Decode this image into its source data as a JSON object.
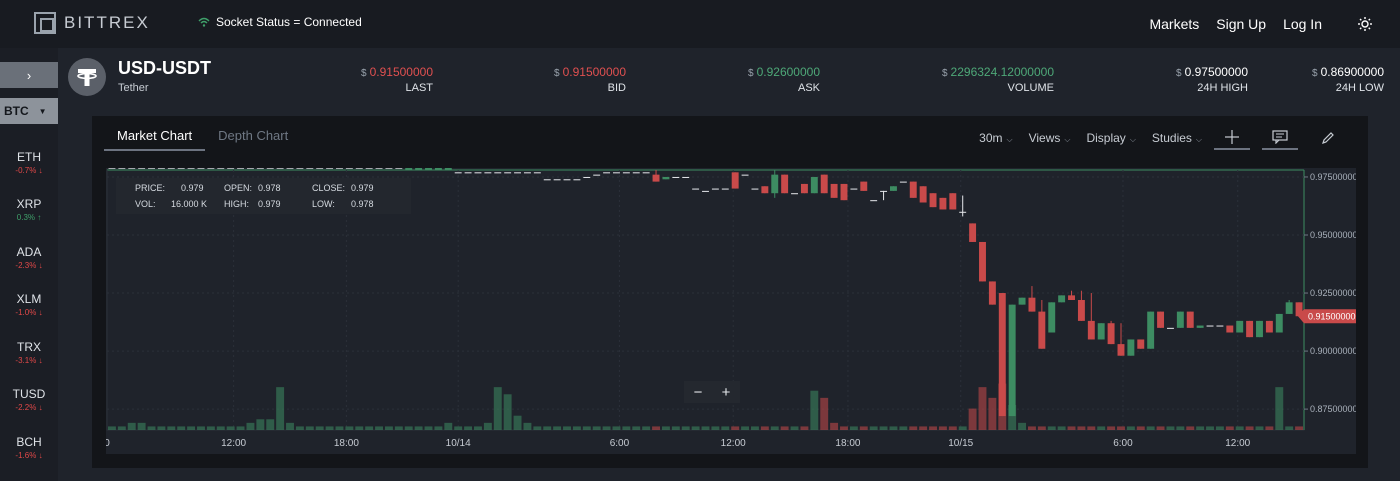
{
  "brand": {
    "name": "BITTREX"
  },
  "socket_status": "Socket Status = Connected",
  "nav": {
    "markets": "Markets",
    "signup": "Sign Up",
    "login": "Log In"
  },
  "sidebar": {
    "collapse": "›",
    "market": "BTC",
    "coins": [
      {
        "symbol": "ETH",
        "change": "-0.7%",
        "dir": "down"
      },
      {
        "symbol": "XRP",
        "change": "0.3%",
        "dir": "up"
      },
      {
        "symbol": "ADA",
        "change": "-2.3%",
        "dir": "down"
      },
      {
        "symbol": "XLM",
        "change": "-1.0%",
        "dir": "down"
      },
      {
        "symbol": "TRX",
        "change": "-3.1%",
        "dir": "down"
      },
      {
        "symbol": "TUSD",
        "change": "-2.2%",
        "dir": "down"
      },
      {
        "symbol": "BCH",
        "change": "-1.6%",
        "dir": "down"
      }
    ]
  },
  "ticker": {
    "pair": "USD-USDT",
    "name": "Tether",
    "stats": [
      {
        "label": "LAST",
        "value": "0.91500000",
        "color": "red"
      },
      {
        "label": "BID",
        "value": "0.91500000",
        "color": "red"
      },
      {
        "label": "ASK",
        "value": "0.92600000",
        "color": "green"
      },
      {
        "label": "VOLUME",
        "value": "2296324.12000000",
        "color": "green"
      },
      {
        "label": "24H HIGH",
        "value": "0.97500000",
        "color": "white"
      },
      {
        "label": "24H LOW",
        "value": "0.86900000",
        "color": "white"
      }
    ]
  },
  "chart_tabs": {
    "market": "Market Chart",
    "depth": "Depth Chart"
  },
  "toolbar": {
    "interval": "30m",
    "views": "Views",
    "display": "Display",
    "studies": "Studies"
  },
  "ohlc": {
    "price_label": "PRICE:",
    "price": "0.979",
    "open_label": "OPEN:",
    "open": "0.978",
    "close_label": "CLOSE:",
    "close": "0.979",
    "vol_label": "VOL:",
    "vol": "16.000 K",
    "high_label": "HIGH:",
    "high": "0.979",
    "low_label": "LOW:",
    "low": "0.978"
  },
  "zoom": {
    "minus": "−",
    "plus": "+"
  },
  "colors": {
    "up": "#3d8c62",
    "down": "#c94a4a",
    "background": "#1f232b",
    "panel": "#131519"
  },
  "chart_data": {
    "type": "candlestick",
    "interval": "30m",
    "current_price": "0.91500000",
    "y_ticks": [
      "0.97500000",
      "0.95000000",
      "0.92500000",
      "0.90000000",
      "0.87500000"
    ],
    "ylim": [
      0.866,
      0.978
    ],
    "x_ticks": [
      "0",
      "12:00",
      "18:00",
      "10/14",
      "6:00",
      "12:00",
      "18:00",
      "10/15",
      "6:00",
      "12:00"
    ],
    "x_tick_index": [
      0,
      12.8,
      24.2,
      35.5,
      51.8,
      63.3,
      74.9,
      86.3,
      102.7,
      114.3
    ],
    "candles": [
      [
        0.979,
        0.979,
        0.979,
        0.979
      ],
      [
        0.979,
        0.979,
        0.979,
        0.979
      ],
      [
        0.979,
        0.979,
        0.979,
        0.979
      ],
      [
        0.979,
        0.979,
        0.979,
        0.979
      ],
      [
        0.979,
        0.979,
        0.979,
        0.979
      ],
      [
        0.979,
        0.979,
        0.979,
        0.979
      ],
      [
        0.979,
        0.979,
        0.979,
        0.979
      ],
      [
        0.979,
        0.979,
        0.979,
        0.979
      ],
      [
        0.979,
        0.979,
        0.979,
        0.979
      ],
      [
        0.979,
        0.979,
        0.979,
        0.979
      ],
      [
        0.979,
        0.979,
        0.979,
        0.979
      ],
      [
        0.979,
        0.979,
        0.979,
        0.979
      ],
      [
        0.979,
        0.979,
        0.979,
        0.979
      ],
      [
        0.979,
        0.979,
        0.979,
        0.979
      ],
      [
        0.979,
        0.979,
        0.979,
        0.979
      ],
      [
        0.979,
        0.979,
        0.979,
        0.979
      ],
      [
        0.979,
        0.979,
        0.979,
        0.979
      ],
      [
        0.979,
        0.979,
        0.979,
        0.979
      ],
      [
        0.979,
        0.979,
        0.979,
        0.979
      ],
      [
        0.979,
        0.979,
        0.979,
        0.979
      ],
      [
        0.979,
        0.979,
        0.979,
        0.979
      ],
      [
        0.979,
        0.979,
        0.979,
        0.979
      ],
      [
        0.979,
        0.979,
        0.979,
        0.979
      ],
      [
        0.979,
        0.979,
        0.979,
        0.979
      ],
      [
        0.979,
        0.979,
        0.979,
        0.979
      ],
      [
        0.979,
        0.979,
        0.979,
        0.979
      ],
      [
        0.979,
        0.979,
        0.979,
        0.979
      ],
      [
        0.979,
        0.979,
        0.979,
        0.979
      ],
      [
        0.979,
        0.979,
        0.979,
        0.979
      ],
      [
        0.979,
        0.979,
        0.979,
        0.979
      ],
      [
        0.978,
        0.979,
        0.978,
        0.979
      ],
      [
        0.978,
        0.979,
        0.978,
        0.979
      ],
      [
        0.978,
        0.979,
        0.978,
        0.979
      ],
      [
        0.978,
        0.979,
        0.978,
        0.979
      ],
      [
        0.978,
        0.979,
        0.978,
        0.979
      ],
      [
        0.977,
        0.977,
        0.977,
        0.977
      ],
      [
        0.977,
        0.977,
        0.977,
        0.977
      ],
      [
        0.977,
        0.977,
        0.977,
        0.977
      ],
      [
        0.977,
        0.977,
        0.977,
        0.977
      ],
      [
        0.977,
        0.977,
        0.977,
        0.977
      ],
      [
        0.977,
        0.977,
        0.977,
        0.977
      ],
      [
        0.977,
        0.977,
        0.977,
        0.977
      ],
      [
        0.977,
        0.977,
        0.977,
        0.977
      ],
      [
        0.977,
        0.977,
        0.977,
        0.977
      ],
      [
        0.974,
        0.974,
        0.974,
        0.974
      ],
      [
        0.974,
        0.974,
        0.974,
        0.974
      ],
      [
        0.974,
        0.974,
        0.974,
        0.974
      ],
      [
        0.974,
        0.974,
        0.974,
        0.974
      ],
      [
        0.975,
        0.975,
        0.975,
        0.975
      ],
      [
        0.976,
        0.976,
        0.976,
        0.976
      ],
      [
        0.977,
        0.977,
        0.977,
        0.977
      ],
      [
        0.977,
        0.977,
        0.977,
        0.977
      ],
      [
        0.977,
        0.977,
        0.977,
        0.977
      ],
      [
        0.977,
        0.977,
        0.977,
        0.977
      ],
      [
        0.977,
        0.977,
        0.977,
        0.977
      ],
      [
        0.976,
        0.978,
        0.973,
        0.973
      ],
      [
        0.974,
        0.975,
        0.974,
        0.975
      ],
      [
        0.975,
        0.975,
        0.975,
        0.975
      ],
      [
        0.975,
        0.975,
        0.975,
        0.975
      ],
      [
        0.97,
        0.97,
        0.97,
        0.97
      ],
      [
        0.969,
        0.969,
        0.969,
        0.969
      ],
      [
        0.97,
        0.97,
        0.97,
        0.97
      ],
      [
        0.97,
        0.97,
        0.97,
        0.97
      ],
      [
        0.977,
        0.977,
        0.97,
        0.97
      ],
      [
        0.976,
        0.976,
        0.976,
        0.976
      ],
      [
        0.97,
        0.97,
        0.97,
        0.97
      ],
      [
        0.971,
        0.971,
        0.968,
        0.968
      ],
      [
        0.968,
        0.978,
        0.966,
        0.976
      ],
      [
        0.976,
        0.976,
        0.968,
        0.968
      ],
      [
        0.968,
        0.968,
        0.968,
        0.968
      ],
      [
        0.972,
        0.972,
        0.968,
        0.968
      ],
      [
        0.968,
        0.975,
        0.968,
        0.975
      ],
      [
        0.976,
        0.976,
        0.968,
        0.968
      ],
      [
        0.972,
        0.972,
        0.966,
        0.966
      ],
      [
        0.972,
        0.972,
        0.965,
        0.965
      ],
      [
        0.97,
        0.97,
        0.97,
        0.97
      ],
      [
        0.973,
        0.973,
        0.969,
        0.969
      ],
      [
        0.965,
        0.965,
        0.965,
        0.965
      ],
      [
        0.969,
        0.969,
        0.965,
        0.969
      ],
      [
        0.969,
        0.971,
        0.969,
        0.971
      ],
      [
        0.973,
        0.973,
        0.973,
        0.973
      ],
      [
        0.973,
        0.973,
        0.966,
        0.966
      ],
      [
        0.971,
        0.971,
        0.964,
        0.964
      ],
      [
        0.968,
        0.968,
        0.962,
        0.962
      ],
      [
        0.966,
        0.966,
        0.961,
        0.961
      ],
      [
        0.968,
        0.968,
        0.961,
        0.961
      ],
      [
        0.96,
        0.967,
        0.958,
        0.96
      ],
      [
        0.955,
        0.955,
        0.947,
        0.947
      ],
      [
        0.947,
        0.947,
        0.93,
        0.93
      ],
      [
        0.93,
        0.93,
        0.92,
        0.92
      ],
      [
        0.925,
        0.925,
        0.872,
        0.872
      ],
      [
        0.872,
        0.92,
        0.872,
        0.92
      ],
      [
        0.92,
        0.923,
        0.92,
        0.923
      ],
      [
        0.923,
        0.928,
        0.917,
        0.917
      ],
      [
        0.917,
        0.922,
        0.901,
        0.901
      ],
      [
        0.908,
        0.921,
        0.908,
        0.921
      ],
      [
        0.921,
        0.924,
        0.921,
        0.924
      ],
      [
        0.924,
        0.926,
        0.922,
        0.922
      ],
      [
        0.922,
        0.926,
        0.913,
        0.913
      ],
      [
        0.913,
        0.925,
        0.905,
        0.905
      ],
      [
        0.905,
        0.912,
        0.905,
        0.912
      ],
      [
        0.912,
        0.913,
        0.903,
        0.903
      ],
      [
        0.903,
        0.912,
        0.898,
        0.898
      ],
      [
        0.898,
        0.905,
        0.898,
        0.905
      ],
      [
        0.905,
        0.905,
        0.901,
        0.901
      ],
      [
        0.901,
        0.917,
        0.901,
        0.917
      ],
      [
        0.917,
        0.917,
        0.91,
        0.91
      ],
      [
        0.91,
        0.91,
        0.91,
        0.91
      ],
      [
        0.91,
        0.917,
        0.91,
        0.917
      ],
      [
        0.917,
        0.917,
        0.91,
        0.91
      ],
      [
        0.91,
        0.911,
        0.91,
        0.911
      ],
      [
        0.911,
        0.911,
        0.911,
        0.911
      ],
      [
        0.911,
        0.911,
        0.911,
        0.911
      ],
      [
        0.911,
        0.911,
        0.908,
        0.908
      ],
      [
        0.908,
        0.913,
        0.908,
        0.913
      ],
      [
        0.913,
        0.913,
        0.906,
        0.906
      ],
      [
        0.906,
        0.913,
        0.906,
        0.913
      ],
      [
        0.913,
        0.913,
        0.908,
        0.908
      ],
      [
        0.908,
        0.916,
        0.908,
        0.916
      ],
      [
        0.916,
        0.922,
        0.916,
        0.921
      ],
      [
        0.921,
        0.921,
        0.915,
        0.915
      ]
    ],
    "volumes": [
      1,
      1,
      2,
      2,
      1,
      1,
      1,
      1,
      1,
      1,
      1,
      1,
      1,
      1,
      2,
      3,
      3,
      12,
      2,
      1,
      1,
      1,
      1,
      1,
      1,
      1,
      1,
      1,
      1,
      1,
      1,
      1,
      1,
      1,
      2,
      1,
      1,
      1,
      2,
      12,
      10,
      4,
      2,
      1,
      1,
      1,
      1,
      1,
      1,
      1,
      1,
      1,
      1,
      1,
      1,
      1,
      1,
      1,
      1,
      1,
      1,
      1,
      1,
      1,
      1,
      1,
      1,
      1,
      1,
      1,
      1,
      11,
      9,
      2,
      1,
      1,
      1,
      1,
      1,
      1,
      1,
      1,
      1,
      1,
      1,
      1,
      1,
      6,
      12,
      9,
      13,
      7,
      2,
      1,
      1,
      1,
      1,
      1,
      1,
      1,
      1,
      1,
      1,
      1,
      1,
      1,
      1,
      1,
      1,
      1,
      1,
      1,
      1,
      1,
      1,
      1,
      1,
      1,
      12,
      1,
      1
    ]
  }
}
